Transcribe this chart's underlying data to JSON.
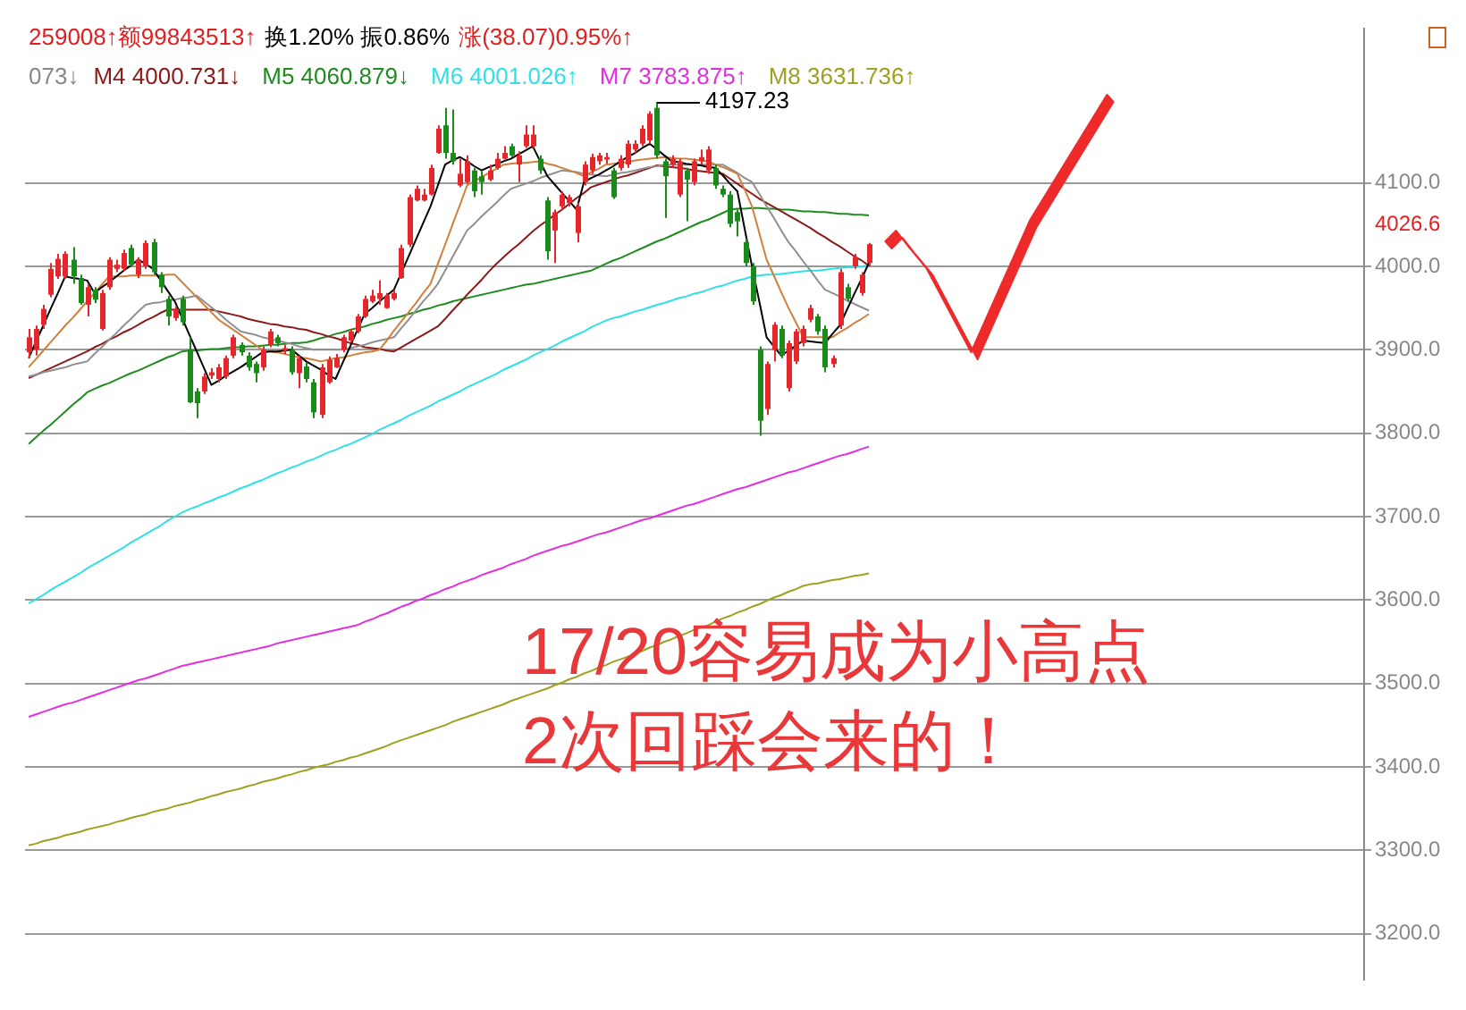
{
  "chart_data": {
    "type": "candlestick",
    "categories": [
      null,
      null,
      null,
      null,
      null,
      null,
      null,
      null,
      null,
      null,
      null,
      null,
      null,
      null,
      null,
      null,
      null,
      null,
      null,
      null,
      null,
      null,
      null,
      null,
      null,
      null,
      null,
      null,
      null,
      null,
      null,
      null,
      null,
      null,
      null,
      null,
      null,
      null,
      null,
      null,
      null,
      null,
      null,
      null,
      null,
      null,
      null,
      null,
      null,
      null,
      null,
      null,
      null,
      null,
      null,
      null,
      null,
      null,
      null,
      null,
      null,
      null,
      null,
      null,
      null,
      null,
      null,
      null,
      null,
      null,
      null,
      null,
      null,
      null,
      null,
      null,
      null,
      null,
      null,
      null,
      null,
      null,
      null,
      null,
      null,
      null,
      null,
      null,
      null,
      null,
      null,
      null,
      null,
      null,
      null,
      null,
      null,
      null,
      null,
      null,
      null,
      null,
      null,
      null,
      null,
      null,
      null,
      null,
      null,
      null,
      null,
      null,
      null,
      null,
      null,
      null
    ],
    "ohlc": [
      [
        3897,
        3925,
        3890,
        3915
      ],
      [
        3900,
        3929,
        3893,
        3925
      ],
      [
        3930,
        3954,
        3925,
        3949
      ],
      [
        3966,
        4004,
        3963,
        3997
      ],
      [
        3988,
        4015,
        3985,
        4009
      ],
      [
        3988,
        4018,
        3985,
        4015
      ],
      [
        4008,
        4023,
        3979,
        3988
      ],
      [
        3986,
        3990,
        3954,
        3956
      ],
      [
        3954,
        3979,
        3940,
        3975
      ],
      [
        3972,
        3975,
        3956,
        3960
      ],
      [
        3925,
        3972,
        3923,
        3968
      ],
      [
        3975,
        4011,
        3972,
        4008
      ],
      [
        3997,
        4008,
        3993,
        4002
      ],
      [
        3997,
        4020,
        3995,
        4016
      ],
      [
        4022,
        4026,
        3999,
        4002
      ],
      [
        3990,
        4011,
        3986,
        4008
      ],
      [
        4000,
        4031,
        3997,
        4028
      ],
      [
        4029,
        4033,
        3990,
        3993
      ],
      [
        3990,
        3993,
        3968,
        3975
      ],
      [
        3961,
        3965,
        3929,
        3940
      ],
      [
        3938,
        3952,
        3935,
        3949
      ],
      [
        3961,
        3965,
        3929,
        3933
      ],
      [
        3900,
        3915,
        3836,
        3837
      ],
      [
        3850,
        3854,
        3818,
        3836
      ],
      [
        3850,
        3872,
        3847,
        3868
      ],
      [
        3869,
        3878,
        3865,
        3873
      ],
      [
        3865,
        3883,
        3861,
        3879
      ],
      [
        3868,
        3893,
        3865,
        3890
      ],
      [
        3893,
        3918,
        3890,
        3915
      ],
      [
        3906,
        3909,
        3893,
        3897
      ],
      [
        3893,
        3897,
        3875,
        3879
      ],
      [
        3883,
        3886,
        3861,
        3872
      ],
      [
        3879,
        3904,
        3875,
        3900
      ],
      [
        3906,
        3925,
        3903,
        3922
      ],
      [
        3915,
        3918,
        3904,
        3908
      ],
      [
        3899,
        3906,
        3895,
        3902
      ],
      [
        3900,
        3904,
        3870,
        3873
      ],
      [
        3872,
        3893,
        3854,
        3890
      ],
      [
        3880,
        3885,
        3861,
        3865
      ],
      [
        3861,
        3865,
        3818,
        3825
      ],
      [
        3822,
        3883,
        3818,
        3879
      ],
      [
        3861,
        3892,
        3859,
        3888
      ],
      [
        3879,
        3895,
        3878,
        3890
      ],
      [
        3900,
        3918,
        3897,
        3915
      ],
      [
        3911,
        3925,
        3909,
        3922
      ],
      [
        3922,
        3943,
        3920,
        3940
      ],
      [
        3940,
        3965,
        3938,
        3961
      ],
      [
        3958,
        3972,
        3956,
        3965
      ],
      [
        3961,
        3983,
        3954,
        3968
      ],
      [
        3950,
        3968,
        3949,
        3965
      ],
      [
        3961,
        3972,
        3959,
        3968
      ],
      [
        3986,
        4026,
        3985,
        4022
      ],
      [
        4026,
        4086,
        4023,
        4083
      ],
      [
        4079,
        4097,
        4078,
        4093
      ],
      [
        4079,
        4093,
        4078,
        4086
      ],
      [
        4086,
        4122,
        4085,
        4118
      ],
      [
        4136,
        4169,
        4135,
        4165
      ],
      [
        4169,
        4190,
        4129,
        4136
      ],
      [
        4136,
        4188,
        4122,
        4126
      ],
      [
        4097,
        4129,
        4095,
        4111
      ],
      [
        4101,
        4133,
        4099,
        4126
      ],
      [
        4115,
        4118,
        4083,
        4090
      ],
      [
        4108,
        4115,
        4086,
        4101
      ],
      [
        4104,
        4122,
        4102,
        4115
      ],
      [
        4118,
        4136,
        4116,
        4129
      ],
      [
        4129,
        4144,
        4128,
        4136
      ],
      [
        4144,
        4147,
        4131,
        4133
      ],
      [
        4122,
        4138,
        4101,
        4133
      ],
      [
        4144,
        4169,
        4142,
        4158
      ],
      [
        4144,
        4169,
        4142,
        4158
      ],
      [
        4129,
        4133,
        4111,
        4115
      ],
      [
        4079,
        4083,
        4008,
        4018
      ],
      [
        4043,
        4068,
        4004,
        4065
      ],
      [
        4072,
        4090,
        4068,
        4086
      ],
      [
        4076,
        4086,
        4072,
        4083
      ],
      [
        4040,
        4076,
        4029,
        4072
      ],
      [
        4101,
        4126,
        4097,
        4122
      ],
      [
        4115,
        4135,
        4111,
        4131
      ],
      [
        4126,
        4136,
        4122,
        4133
      ],
      [
        4128,
        4136,
        4123,
        4131
      ],
      [
        4115,
        4118,
        4081,
        4083
      ],
      [
        4118,
        4133,
        4115,
        4129
      ],
      [
        4122,
        4151,
        4118,
        4147
      ],
      [
        4140,
        4151,
        4136,
        4147
      ],
      [
        4147,
        4169,
        4144,
        4165
      ],
      [
        4151,
        4186,
        4147,
        4183
      ],
      [
        4190,
        4197.23,
        4129,
        4133
      ],
      [
        4126,
        4129,
        4058,
        4108
      ],
      [
        4122,
        4133,
        4118,
        4129
      ],
      [
        4086,
        4129,
        4083,
        4126
      ],
      [
        4115,
        4118,
        4054,
        4104
      ],
      [
        4101,
        4129,
        4097,
        4126
      ],
      [
        4126,
        4140,
        4122,
        4131
      ],
      [
        4115,
        4144,
        4111,
        4140
      ],
      [
        4118,
        4122,
        4093,
        4097
      ],
      [
        4093,
        4097,
        4083,
        4086
      ],
      [
        4086,
        4090,
        4047,
        4051
      ],
      [
        4065,
        4068,
        4036,
        4054
      ],
      [
        4029,
        4033,
        4000,
        4004
      ],
      [
        4000,
        4004,
        3954,
        3958
      ],
      [
        3900,
        3904,
        3797,
        3815
      ],
      [
        3829,
        3886,
        3822,
        3883
      ],
      [
        3900,
        3933,
        3886,
        3930
      ],
      [
        3925,
        3929,
        3890,
        3893
      ],
      [
        3854,
        3911,
        3850,
        3908
      ],
      [
        3886,
        3925,
        3883,
        3922
      ],
      [
        3908,
        3929,
        3904,
        3925
      ],
      [
        3936,
        3954,
        3933,
        3950
      ],
      [
        3940,
        3943,
        3918,
        3922
      ],
      [
        3925,
        3929,
        3873,
        3879
      ],
      [
        3883,
        3893,
        3879,
        3890
      ],
      [
        3929,
        3997,
        3925,
        3993
      ],
      [
        3975,
        3979,
        3958,
        3961
      ],
      [
        4000,
        4015,
        3997,
        4011
      ],
      [
        3968,
        3993,
        3965,
        3990
      ],
      [
        4004,
        4028,
        4000,
        4026.6
      ]
    ],
    "colors": [
      "#e5262a",
      "#e5262a",
      "#e5262a",
      "#e5262a",
      "#e5262a",
      "#e5262a",
      "#1a8a1a",
      "#1a8a1a",
      "#e5262a",
      "#1a8a1a",
      "#e5262a",
      "#e5262a",
      "#e5262a",
      "#e5262a",
      "#1a8a1a",
      "#e5262a",
      "#e5262a",
      "#1a8a1a",
      "#1a8a1a",
      "#1a8a1a",
      "#e5262a",
      "#1a8a1a",
      "#1a8a1a",
      "#1a8a1a",
      "#e5262a",
      "#e5262a",
      "#e5262a",
      "#e5262a",
      "#e5262a",
      "#1a8a1a",
      "#1a8a1a",
      "#1a8a1a",
      "#e5262a",
      "#e5262a",
      "#1a8a1a",
      "#e5262a",
      "#1a8a1a",
      "#e5262a",
      "#1a8a1a",
      "#1a8a1a",
      "#e5262a",
      "#e5262a",
      "#e5262a",
      "#e5262a",
      "#e5262a",
      "#e5262a",
      "#e5262a",
      "#e5262a",
      "#e5262a",
      "#e5262a",
      "#e5262a",
      "#e5262a",
      "#e5262a",
      "#e5262a",
      "#e5262a",
      "#e5262a",
      "#e5262a",
      "#1a8a1a",
      "#1a8a1a",
      "#e5262a",
      "#e5262a",
      "#1a8a1a",
      "#1a8a1a",
      "#e5262a",
      "#e5262a",
      "#e5262a",
      "#1a8a1a",
      "#e5262a",
      "#e5262a",
      "#e5262a",
      "#1a8a1a",
      "#1a8a1a",
      "#e5262a",
      "#e5262a",
      "#e5262a",
      "#e5262a",
      "#e5262a",
      "#e5262a",
      "#e5262a",
      "#e5262a",
      "#1a8a1a",
      "#e5262a",
      "#e5262a",
      "#e5262a",
      "#e5262a",
      "#e5262a",
      "#1a8a1a",
      "#1a8a1a",
      "#e5262a",
      "#e5262a",
      "#1a8a1a",
      "#e5262a",
      "#e5262a",
      "#e5262a",
      "#1a8a1a",
      "#1a8a1a",
      "#1a8a1a",
      "#1a8a1a",
      "#1a8a1a",
      "#1a8a1a",
      "#1a8a1a",
      "#e5262a",
      "#e5262a",
      "#1a8a1a",
      "#e5262a",
      "#e5262a",
      "#e5262a",
      "#e5262a",
      "#1a8a1a",
      "#1a8a1a",
      "#e5262a",
      "#e5262a",
      "#1a8a1a",
      "#e5262a",
      "#e5262a",
      "#e5262a"
    ],
    "ylim": [
      3145,
      4285
    ],
    "yticks": [
      {
        "value": 3200,
        "label": "3200.0"
      },
      {
        "value": 3300,
        "label": "3300.0"
      },
      {
        "value": 3400,
        "label": "3400.0"
      },
      {
        "value": 3500,
        "label": "3500.0"
      },
      {
        "value": 3600,
        "label": "3600.0"
      },
      {
        "value": 3700,
        "label": "3700.0"
      },
      {
        "value": 3800,
        "label": "3800.0"
      },
      {
        "value": 3900,
        "label": "3900.0"
      },
      {
        "value": 4000,
        "label": "4000.0"
      },
      {
        "value": 4100,
        "label": "4100.0"
      }
    ],
    "tick_labels": "y",
    "grid": "y",
    "marker": "none",
    "line_style": "solid",
    "series": [
      {
        "type": "line",
        "color": "#000000",
        "values": [
          3890,
          3910,
          3929,
          3949,
          3968,
          3988,
          3986,
          3985,
          3983,
          3968,
          3975,
          3981,
          3988,
          3995,
          4001,
          4008,
          4003,
          3997,
          3984,
          3971,
          3958,
          3938,
          3918,
          3898,
          3878,
          3858,
          3863,
          3869,
          3874,
          3879,
          3885,
          3891,
          3897,
          3898,
          3898,
          3899,
          3900,
          3893,
          3886,
          3881,
          3876,
          3870,
          3865,
          3885,
          3904,
          3924,
          3943,
          3950,
          3958,
          3965,
          3972,
          3992,
          4012,
          4032,
          4052,
          4072,
          4097,
          4122,
          4127,
          4131,
          4126,
          4120,
          4115,
          4119,
          4122,
          4126,
          4129,
          4134,
          4139,
          4144,
          4126,
          4108,
          4098,
          4088,
          4078,
          4068,
          4101,
          4106,
          4110,
          4115,
          4120,
          4126,
          4131,
          4136,
          4142,
          4147,
          4140,
          4133,
          4126,
          4125,
          4123,
          4122,
          4121,
          4119,
          4118,
          4109,
          4099,
          4090,
          4045,
          4000,
          3958,
          3915,
          3904,
          3893,
          3899,
          3905,
          3911,
          3910,
          3909,
          3908,
          3919,
          3929,
          3948,
          3967,
          3985,
          4004
        ]
      },
      {
        "type": "line",
        "color": "#d0803c",
        "values": [
          3879,
          3889,
          3899,
          3909,
          3919,
          3929,
          3938,
          3948,
          3958,
          3968,
          3978,
          3988,
          3988,
          3988,
          3989,
          3989,
          3989,
          3989,
          3989,
          3990,
          3990,
          3981,
          3972,
          3963,
          3954,
          3945,
          3936,
          3930,
          3924,
          3918,
          3912,
          3906,
          3900,
          3898,
          3897,
          3895,
          3893,
          3891,
          3890,
          3888,
          3886,
          3888,
          3890,
          3891,
          3893,
          3895,
          3897,
          3898,
          3900,
          3911,
          3923,
          3934,
          3945,
          3956,
          3968,
          3979,
          4003,
          4026,
          4050,
          4073,
          4097,
          4102,
          4107,
          4112,
          4117,
          4122,
          4123,
          4124,
          4124,
          4125,
          4126,
          4123,
          4121,
          4118,
          4115,
          4112,
          4108,
          4113,
          4117,
          4122,
          4123,
          4124,
          4125,
          4127,
          4128,
          4129,
          4130,
          4131,
          4130,
          4129,
          4129,
          4128,
          4127,
          4126,
          4122,
          4119,
          4115,
          4111,
          4092,
          4072,
          4040,
          4008,
          3989,
          3969,
          3950,
          3933,
          3915,
          3915,
          3915,
          3915,
          3915,
          3921,
          3926,
          3932,
          3937,
          3943
        ]
      },
      {
        "type": "line",
        "color": "#909090",
        "values": [
          3868,
          3870,
          3873,
          3875,
          3877,
          3879,
          3882,
          3884,
          3886,
          3895,
          3903,
          3912,
          3920,
          3929,
          3937,
          3946,
          3954,
          3956,
          3957,
          3959,
          3960,
          3962,
          3963,
          3965,
          3958,
          3951,
          3944,
          3936,
          3929,
          3922,
          3920,
          3918,
          3915,
          3913,
          3911,
          3909,
          3907,
          3904,
          3902,
          3900,
          3900,
          3900,
          3900,
          3900,
          3902,
          3904,
          3906,
          3909,
          3911,
          3913,
          3915,
          3926,
          3936,
          3947,
          3958,
          3968,
          3979,
          3995,
          4011,
          4027,
          4043,
          4051,
          4060,
          4068,
          4076,
          4085,
          4093,
          4096,
          4099,
          4102,
          4106,
          4109,
          4112,
          4115,
          4114,
          4113,
          4111,
          4110,
          4109,
          4108,
          4110,
          4112,
          4113,
          4115,
          4117,
          4119,
          4120,
          4122,
          4122,
          4122,
          4122,
          4122,
          4122,
          4122,
          4122,
          4122,
          4117,
          4112,
          4106,
          4101,
          4087,
          4072,
          4058,
          4043,
          4029,
          4018,
          4006,
          3995,
          3983,
          3972,
          3968,
          3964,
          3959,
          3955,
          3951,
          3947
        ]
      },
      {
        "type": "line",
        "name": "M4 4000.731↓",
        "color": "#8b1a1a",
        "values": [
          3866,
          3870,
          3874,
          3878,
          3882,
          3886,
          3890,
          3894,
          3898,
          3903,
          3907,
          3912,
          3916,
          3921,
          3925,
          3930,
          3935,
          3939,
          3944,
          3948,
          3948,
          3948,
          3948,
          3948,
          3948,
          3948,
          3946,
          3944,
          3942,
          3940,
          3937,
          3935,
          3933,
          3931,
          3930,
          3928,
          3927,
          3925,
          3924,
          3921,
          3919,
          3916,
          3914,
          3911,
          3908,
          3906,
          3903,
          3902,
          3901,
          3899,
          3898,
          3903,
          3908,
          3913,
          3918,
          3923,
          3928,
          3937,
          3947,
          3956,
          3966,
          3975,
          3984,
          3994,
          4003,
          4011,
          4019,
          4026,
          4034,
          4042,
          4049,
          4055,
          4062,
          4068,
          4075,
          4082,
          4088,
          4095,
          4098,
          4101,
          4104,
          4107,
          4109,
          4112,
          4115,
          4118,
          4121,
          4120,
          4119,
          4118,
          4117,
          4115,
          4114,
          4113,
          4112,
          4111,
          4105,
          4099,
          4093,
          4087,
          4081,
          4076,
          4071,
          4066,
          4061,
          4056,
          4051,
          4046,
          4040,
          4035,
          4029,
          4024,
          4018,
          4012,
          4007,
          4001
        ]
      },
      {
        "type": "line",
        "name": "M5 4060.879↓",
        "color": "#1e8c1e",
        "values": [
          3787,
          3795,
          3803,
          3810,
          3818,
          3826,
          3834,
          3841,
          3849,
          3853,
          3857,
          3860,
          3864,
          3868,
          3872,
          3875,
          3879,
          3883,
          3887,
          3891,
          3894,
          3898,
          3899,
          3899,
          3900,
          3901,
          3901,
          3902,
          3903,
          3903,
          3904,
          3904,
          3905,
          3906,
          3906,
          3907,
          3908,
          3908,
          3909,
          3911,
          3914,
          3916,
          3919,
          3921,
          3924,
          3926,
          3928,
          3931,
          3933,
          3936,
          3938,
          3940,
          3943,
          3945,
          3948,
          3950,
          3953,
          3955,
          3958,
          3960,
          3962,
          3964,
          3966,
          3968,
          3970,
          3972,
          3974,
          3976,
          3978,
          3979,
          3981,
          3983,
          3985,
          3987,
          3989,
          3991,
          3993,
          3995,
          3999,
          4003,
          4007,
          4010,
          4014,
          4018,
          4022,
          4026,
          4030,
          4033,
          4037,
          4041,
          4045,
          4049,
          4053,
          4056,
          4060,
          4064,
          4068,
          4069,
          4069,
          4070,
          4070,
          4069,
          4069,
          4068,
          4068,
          4067,
          4066,
          4066,
          4065,
          4065,
          4064,
          4063,
          4063,
          4062,
          4062,
          4061
        ]
      },
      {
        "type": "line",
        "name": "M6 4001.026↑",
        "color": "#30e0e8",
        "values": [
          3596,
          3601,
          3606,
          3612,
          3617,
          3622,
          3627,
          3632,
          3638,
          3643,
          3648,
          3653,
          3658,
          3663,
          3669,
          3674,
          3679,
          3684,
          3689,
          3695,
          3700,
          3705,
          3709,
          3712,
          3716,
          3719,
          3723,
          3726,
          3730,
          3734,
          3737,
          3741,
          3744,
          3748,
          3752,
          3755,
          3759,
          3762,
          3766,
          3769,
          3773,
          3777,
          3780,
          3784,
          3787,
          3791,
          3795,
          3799,
          3804,
          3808,
          3812,
          3816,
          3821,
          3825,
          3829,
          3833,
          3838,
          3842,
          3846,
          3850,
          3855,
          3859,
          3863,
          3867,
          3871,
          3876,
          3880,
          3884,
          3888,
          3893,
          3897,
          3901,
          3905,
          3910,
          3914,
          3918,
          3922,
          3927,
          3931,
          3935,
          3938,
          3940,
          3943,
          3946,
          3948,
          3951,
          3954,
          3956,
          3959,
          3962,
          3964,
          3967,
          3969,
          3972,
          3975,
          3977,
          3980,
          3983,
          3985,
          3988,
          3989,
          3990,
          3990,
          3991,
          3992,
          3993,
          3994,
          3995,
          3995,
          3996,
          3997,
          3998,
          3999,
          3999,
          4000,
          4001
        ]
      },
      {
        "type": "line",
        "name": "M7 3783.875↑",
        "color": "#e030e0",
        "values": [
          3460,
          3463,
          3466,
          3469,
          3472,
          3475,
          3477,
          3480,
          3483,
          3486,
          3489,
          3492,
          3495,
          3498,
          3501,
          3504,
          3506,
          3509,
          3512,
          3515,
          3518,
          3521,
          3523,
          3525,
          3527,
          3529,
          3531,
          3533,
          3535,
          3537,
          3539,
          3541,
          3543,
          3545,
          3548,
          3550,
          3552,
          3554,
          3556,
          3558,
          3560,
          3562,
          3564,
          3566,
          3568,
          3570,
          3574,
          3577,
          3581,
          3584,
          3588,
          3592,
          3595,
          3599,
          3602,
          3606,
          3609,
          3613,
          3616,
          3620,
          3623,
          3626,
          3630,
          3633,
          3636,
          3639,
          3643,
          3646,
          3649,
          3653,
          3656,
          3659,
          3662,
          3665,
          3667,
          3670,
          3673,
          3676,
          3679,
          3681,
          3684,
          3687,
          3690,
          3693,
          3696,
          3698,
          3701,
          3704,
          3707,
          3710,
          3713,
          3715,
          3718,
          3721,
          3724,
          3727,
          3730,
          3733,
          3735,
          3738,
          3741,
          3744,
          3747,
          3750,
          3753,
          3755,
          3758,
          3761,
          3764,
          3767,
          3770,
          3773,
          3775,
          3778,
          3781,
          3784
        ]
      },
      {
        "type": "line",
        "name": "M8 3631.736↑",
        "color": "#a0a020",
        "values": [
          3306,
          3308,
          3311,
          3313,
          3315,
          3318,
          3320,
          3322,
          3325,
          3327,
          3329,
          3331,
          3334,
          3336,
          3339,
          3341,
          3343,
          3346,
          3348,
          3350,
          3353,
          3355,
          3357,
          3360,
          3362,
          3365,
          3367,
          3370,
          3372,
          3374,
          3377,
          3379,
          3382,
          3384,
          3386,
          3389,
          3391,
          3394,
          3396,
          3399,
          3401,
          3403,
          3406,
          3408,
          3411,
          3413,
          3416,
          3419,
          3422,
          3425,
          3429,
          3432,
          3435,
          3438,
          3441,
          3444,
          3447,
          3450,
          3454,
          3457,
          3460,
          3463,
          3466,
          3469,
          3472,
          3475,
          3479,
          3482,
          3485,
          3488,
          3491,
          3494,
          3498,
          3501,
          3505,
          3508,
          3512,
          3515,
          3519,
          3522,
          3526,
          3529,
          3532,
          3536,
          3539,
          3543,
          3546,
          3550,
          3553,
          3557,
          3560,
          3564,
          3567,
          3570,
          3574,
          3578,
          3581,
          3585,
          3588,
          3592,
          3595,
          3599,
          3603,
          3606,
          3610,
          3613,
          3617,
          3619,
          3620,
          3622,
          3624,
          3625,
          3627,
          3629,
          3630,
          3632
        ]
      }
    ],
    "annotations": [
      "259008↑额99843513↑",
      "换1.20% 振0.86%",
      "涨(38.07)0.95%↑",
      "073↓",
      "4197.23",
      "4026.6",
      "17/20容易成为小高点",
      "2次回踩会来的！"
    ]
  }
}
